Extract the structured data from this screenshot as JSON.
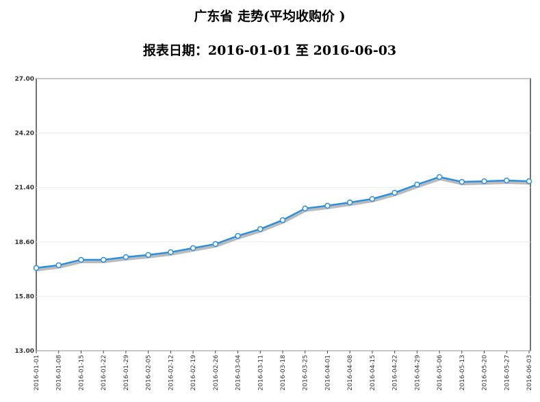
{
  "chart_data": {
    "type": "line",
    "title": "广东省    走势(平均收购价 )",
    "subtitle": "报表日期：2016-01-01 至 2016-06-03",
    "categories": [
      "2016-01-01",
      "2016-01-08",
      "2016-01-15",
      "2016-01-22",
      "2016-01-29",
      "2016-02-05",
      "2016-02-12",
      "2016-02-19",
      "2016-02-26",
      "2016-03-04",
      "2016-03-11",
      "2016-03-18",
      "2016-03-25",
      "2016-04-01",
      "2016-04-08",
      "2016-04-15",
      "2016-04-22",
      "2016-04-29",
      "2016-05-06",
      "2016-05-13",
      "2016-05-20",
      "2016-05-27",
      "2016-06-03"
    ],
    "values": [
      17.26,
      17.4,
      17.68,
      17.68,
      17.82,
      17.93,
      18.07,
      18.28,
      18.49,
      18.91,
      19.26,
      19.72,
      20.32,
      20.46,
      20.63,
      20.81,
      21.13,
      21.55,
      21.94,
      21.69,
      21.72,
      21.76,
      21.72
    ],
    "color": "#2a8fdc",
    "ylim": [
      13,
      27
    ],
    "yticks": [
      {
        "value": 13,
        "label": "13.00"
      },
      {
        "value": 15.8,
        "label": "15.80"
      },
      {
        "value": 18.6,
        "label": "18.60"
      },
      {
        "value": 21.4,
        "label": "21.40"
      },
      {
        "value": 24.2,
        "label": "24.20"
      },
      {
        "value": 27,
        "label": "27.00"
      }
    ],
    "grid": true
  }
}
